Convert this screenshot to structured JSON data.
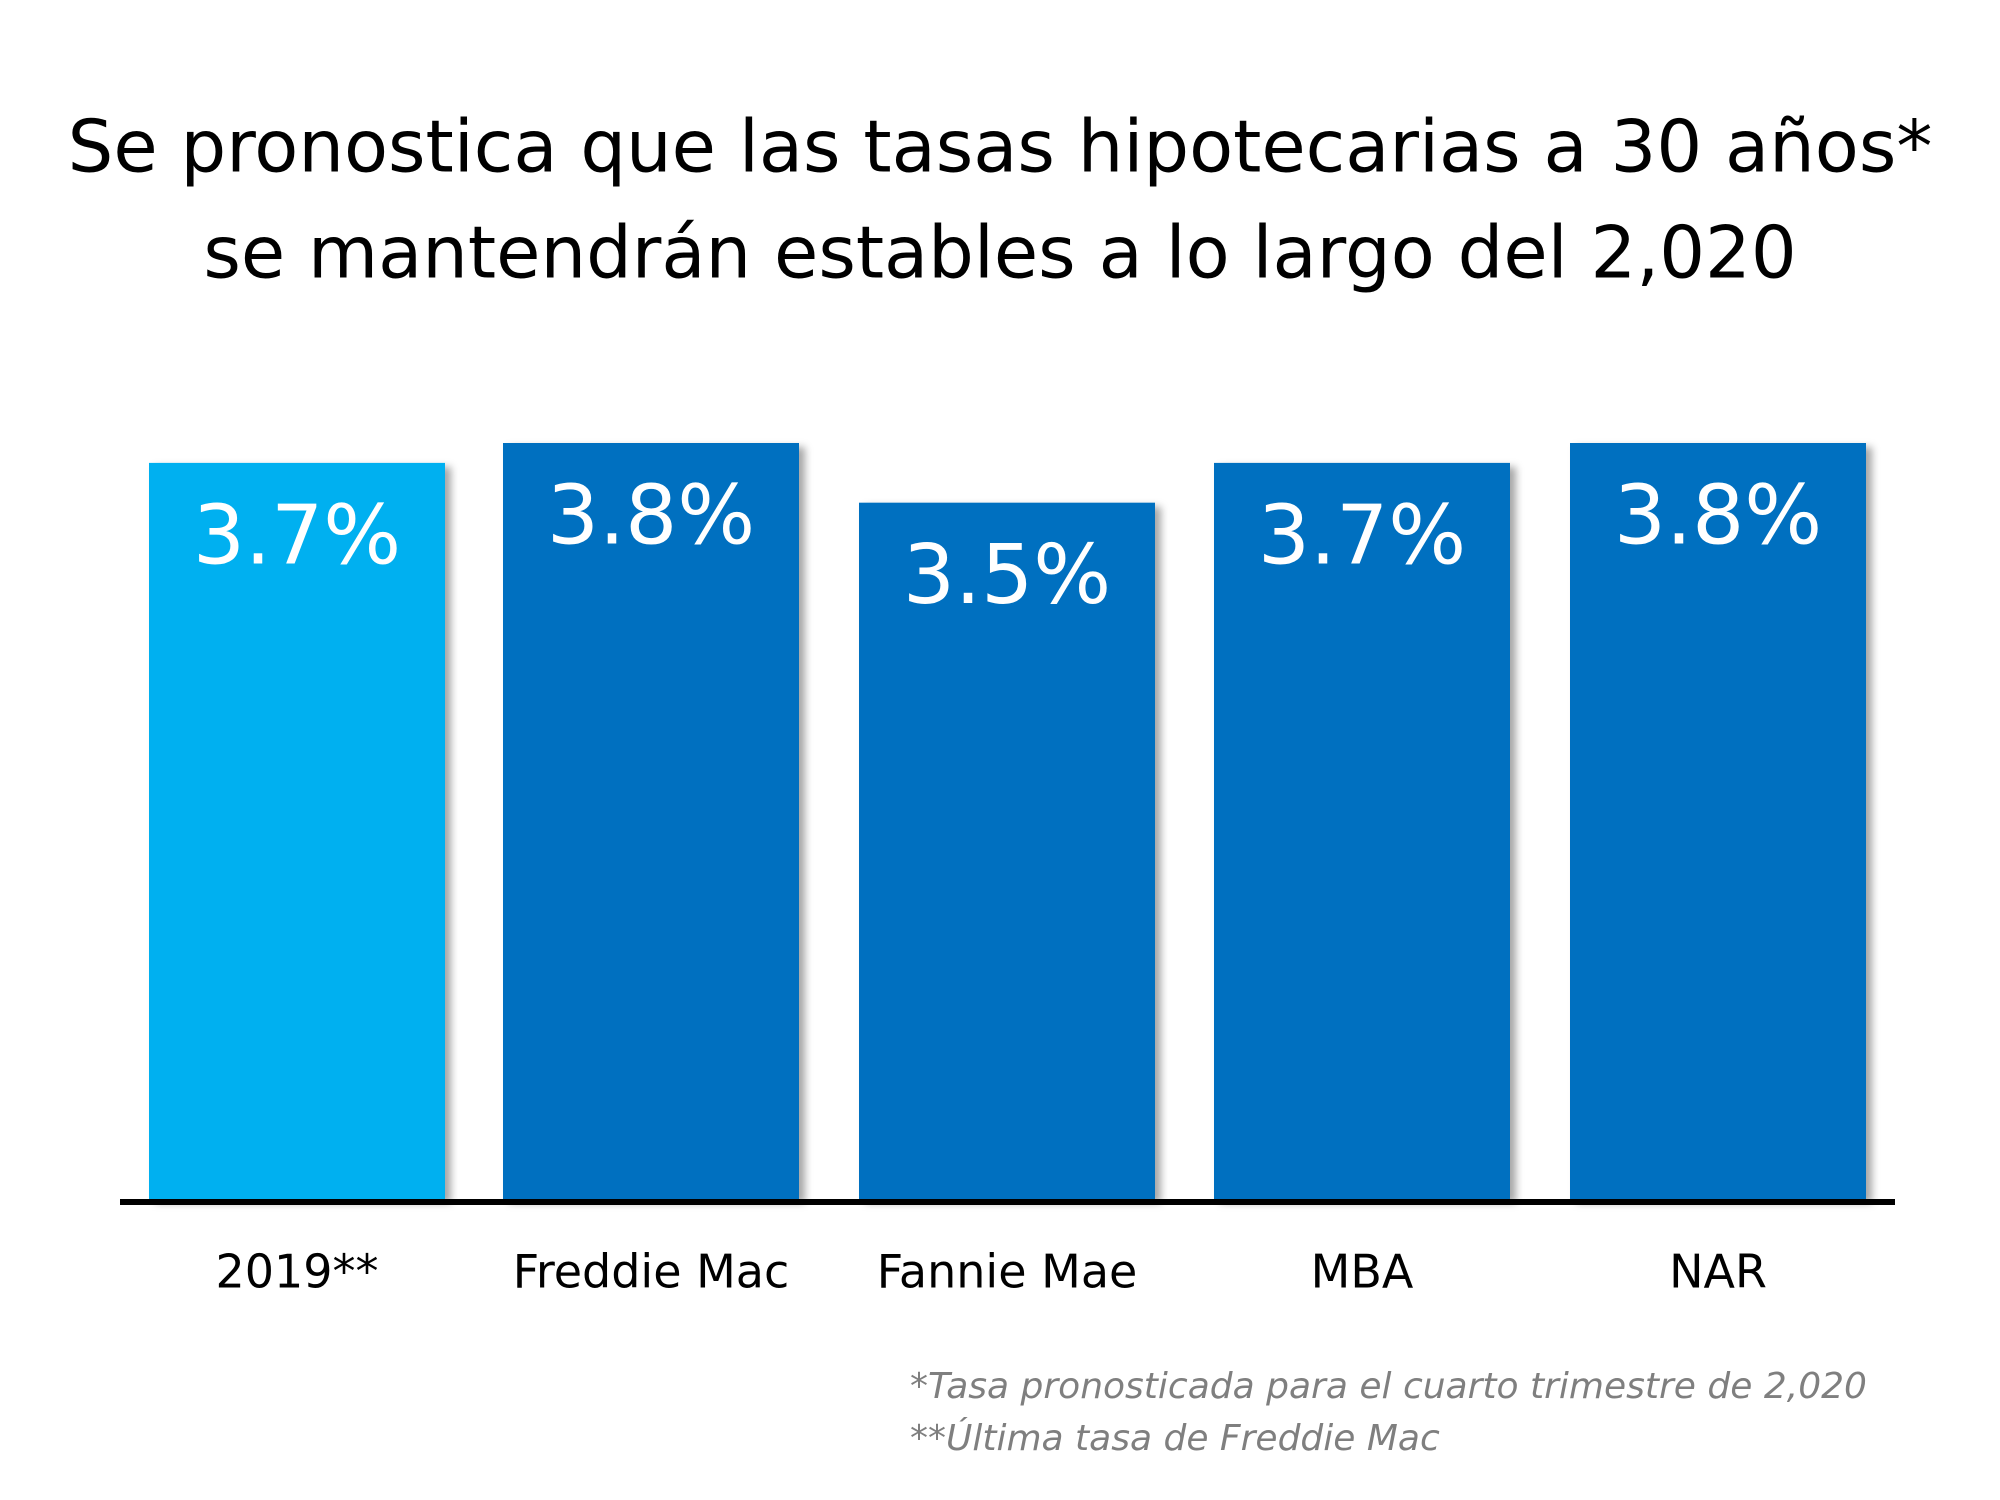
{
  "chart_data": {
    "type": "bar",
    "title": [
      "Se pronostica que las tasas hipotecarias a 30 años*",
      "se mantendrán estables a lo largo del 2,020"
    ],
    "categories": [
      "2019**",
      "Freddie Mac",
      "Fannie Mae",
      "MBA",
      "NAR"
    ],
    "values": [
      3.7,
      3.8,
      3.5,
      3.7,
      3.8
    ],
    "value_labels": [
      "3.7%",
      "3.8%",
      "3.5%",
      "3.7%",
      "3.8%"
    ],
    "colors": [
      "#00b0f0",
      "#0070c0",
      "#0070c0",
      "#0070c0",
      "#0070c0"
    ],
    "ylim": [
      0,
      3.8
    ],
    "notes": [
      "*Tasa pronosticada para el cuarto trimestre de 2,020",
      "**Última tasa de Freddie Mac"
    ]
  }
}
